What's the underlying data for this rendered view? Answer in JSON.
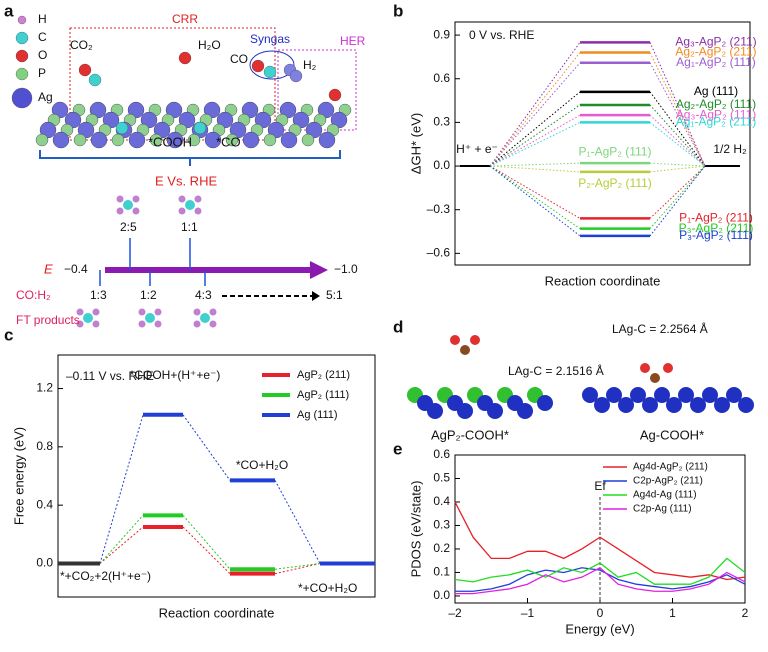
{
  "panel_labels": [
    "a",
    "b",
    "c",
    "d",
    "e"
  ],
  "diagram_a": {
    "legend": [
      "H",
      "C",
      "O",
      "P",
      "Ag"
    ],
    "crr": "CRR",
    "her": "HER",
    "syngas": "Syngas",
    "co2": "CO₂",
    "h2o": "H₂O",
    "co": "CO",
    "h2": "H₂",
    "cooh": "*COOH",
    "co_ads": "*CO",
    "e_vs_rhe": "E Vs. RHE",
    "e_label": "E",
    "e_start": "−0.4",
    "e_end": "−1.0",
    "co_h2": "CO:H₂",
    "ratios_top": [
      "2:5",
      "1:1"
    ],
    "ratios_bottom": [
      "1:3",
      "1:2",
      "4:3",
      "5:1"
    ],
    "ft_products": "FT products"
  },
  "structures_d": {
    "left_label": "AgP₂-COOH*",
    "right_label": "Ag-COOH*",
    "left_bond": "LAg-C = 2.1516 Å",
    "right_bond": "LAg-C = 2.2564 Å"
  },
  "chart_data": [
    {
      "type": "energy_levels",
      "annotation": "0 V vs. RHE",
      "ylabel": "ΔGH* (eV)",
      "xlabel": "Reaction coordinate",
      "endpoints": [
        "H⁺ + e⁻",
        "1/2 H₂"
      ],
      "endpoint_value": 0,
      "ylim": [
        -0.68,
        0.99
      ],
      "yticks": [
        {
          "value": -0.6,
          "label": "–0.6"
        },
        {
          "value": -0.3,
          "label": "–0.3"
        },
        {
          "value": 0,
          "label": "0.0"
        },
        0.3,
        0.6,
        0.9
      ],
      "levels": [
        {
          "name": "Ag₃-AgP₂ (211)",
          "color": "#8b2fa8",
          "value": 0.85
        },
        {
          "name": "Ag₂-AgP₂ (211)",
          "color": "#f08a1c",
          "value": 0.78
        },
        {
          "name": "Ag₁-AgP₂ (111)",
          "color": "#9b5fd0",
          "value": 0.71
        },
        {
          "name": "Ag (111)",
          "color": "#000000",
          "value": 0.51
        },
        {
          "name": "Ag₂-AgP₂ (111)",
          "color": "#1e8c2a",
          "value": 0.42
        },
        {
          "name": "Ag₃-AgP₂ (111)",
          "color": "#e85ad0",
          "value": 0.35
        },
        {
          "name": "Ag₁-AgP₂ (211)",
          "color": "#33d6d6",
          "value": 0.3
        },
        {
          "name": "P₁-AgP₂ (111)",
          "color": "#7dd67d",
          "value": 0.02
        },
        {
          "name": "P₂-AgP₂ (111)",
          "color": "#b8cc3a",
          "value": -0.04
        },
        {
          "name": "P₁-AgP₂ (211)",
          "color": "#e8202a",
          "value": -0.36
        },
        {
          "name": "P₃-AgP₂ (211)",
          "color": "#22cc22",
          "value": -0.43
        },
        {
          "name": "P₃-AgP₂ (111)",
          "color": "#1f3fd6",
          "value": -0.48
        }
      ]
    },
    {
      "type": "energy_profile",
      "annotation": "–0.11 V vs. RHE",
      "ylabel": "Free energy (eV)",
      "xlabel": "Reaction coordinate",
      "categories": [
        "*+CO₂+2(H⁺+e⁻)",
        "*COOH+(H⁺+e⁻)",
        "*CO+H₂O",
        "*+CO+H₂O"
      ],
      "ylim": [
        -0.23,
        1.43
      ],
      "yticks": [
        {
          "value": 0,
          "label": "0.0"
        },
        0.4,
        0.8,
        1.2
      ],
      "series": [
        {
          "name": "AgP₂ (211)",
          "color": "#e8202a",
          "values": [
            0,
            0.25,
            -0.07,
            0
          ]
        },
        {
          "name": "AgP₂ (111)",
          "color": "#22cc22",
          "values": [
            0,
            0.33,
            -0.04,
            0
          ]
        },
        {
          "name": "Ag (111)",
          "color": "#1f3fd6",
          "values": [
            0,
            1.02,
            0.57,
            0
          ]
        }
      ]
    },
    {
      "type": "line",
      "ylabel": "PDOS (eV/state)",
      "xlabel": "Energy (eV)",
      "fermi": {
        "label": "Ef",
        "x": 0
      },
      "xlim": [
        -2,
        2
      ],
      "xticks": [
        {
          "value": -2,
          "label": "–2"
        },
        {
          "value": -1,
          "label": "–1"
        },
        0,
        1,
        2
      ],
      "ylim": [
        -0.03,
        0.6
      ],
      "yticks": [
        {
          "value": 0,
          "label": "0.0"
        },
        0.1,
        0.2,
        0.3,
        0.4,
        0.5,
        0.6
      ],
      "x": [
        -2,
        -1.75,
        -1.5,
        -1.25,
        -1,
        -0.75,
        -0.5,
        -0.25,
        0,
        0.25,
        0.5,
        0.75,
        1,
        1.25,
        1.5,
        1.75,
        2
      ],
      "series": [
        {
          "name": "Ag4d-AgP₂ (211)",
          "color": "#e8202a",
          "values": [
            0.4,
            0.25,
            0.16,
            0.16,
            0.19,
            0.19,
            0.16,
            0.2,
            0.25,
            0.2,
            0.15,
            0.1,
            0.09,
            0.08,
            0.09,
            0.07,
            0.08
          ]
        },
        {
          "name": "C2p-AgP₂ (211)",
          "color": "#1f3fd6",
          "values": [
            0.02,
            0.02,
            0.03,
            0.05,
            0.09,
            0.11,
            0.1,
            0.12,
            0.11,
            0.07,
            0.05,
            0.04,
            0.03,
            0.04,
            0.06,
            0.09,
            0.05
          ]
        },
        {
          "name": "Ag4d-Ag (111)",
          "color": "#22dd22",
          "values": [
            0.07,
            0.06,
            0.08,
            0.09,
            0.11,
            0.08,
            0.12,
            0.1,
            0.14,
            0.08,
            0.1,
            0.05,
            0.05,
            0.05,
            0.08,
            0.16,
            0.1
          ]
        },
        {
          "name": "C2p-Ag (111)",
          "color": "#e020e0",
          "values": [
            0.01,
            0.01,
            0.02,
            0.03,
            0.05,
            0.09,
            0.06,
            0.08,
            0.12,
            0.05,
            0.03,
            0.02,
            0.02,
            0.03,
            0.05,
            0.1,
            0.06
          ]
        }
      ]
    }
  ]
}
